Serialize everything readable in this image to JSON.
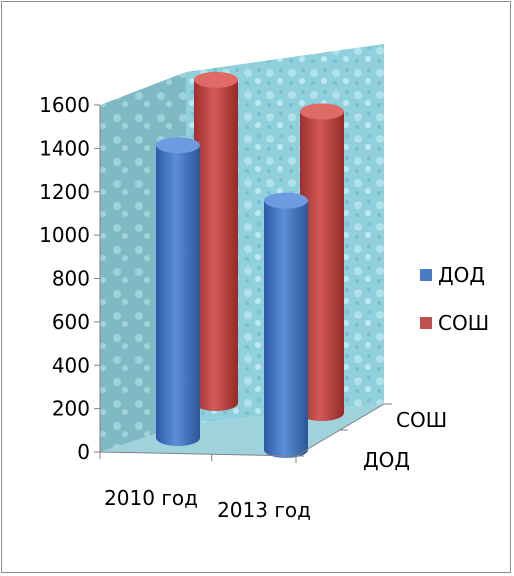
{
  "chart_data": {
    "type": "bar",
    "style": "3d-cylinder",
    "categories": [
      "2010 год",
      "2013 год"
    ],
    "depth_categories": [
      "ДОД",
      "СОШ"
    ],
    "series": [
      {
        "name": "ДОД",
        "values": [
          1350,
          1150
        ],
        "color": "#4a7bc8"
      },
      {
        "name": "СОШ",
        "values": [
          1490,
          1390
        ],
        "color": "#c0504d"
      }
    ],
    "yticks": [
      "0",
      "200",
      "400",
      "600",
      "800",
      "1000",
      "1200",
      "1400",
      "1600"
    ],
    "ylim": [
      0,
      1600
    ],
    "legend_position": "right",
    "title": "",
    "xlabel": "",
    "ylabel": ""
  }
}
